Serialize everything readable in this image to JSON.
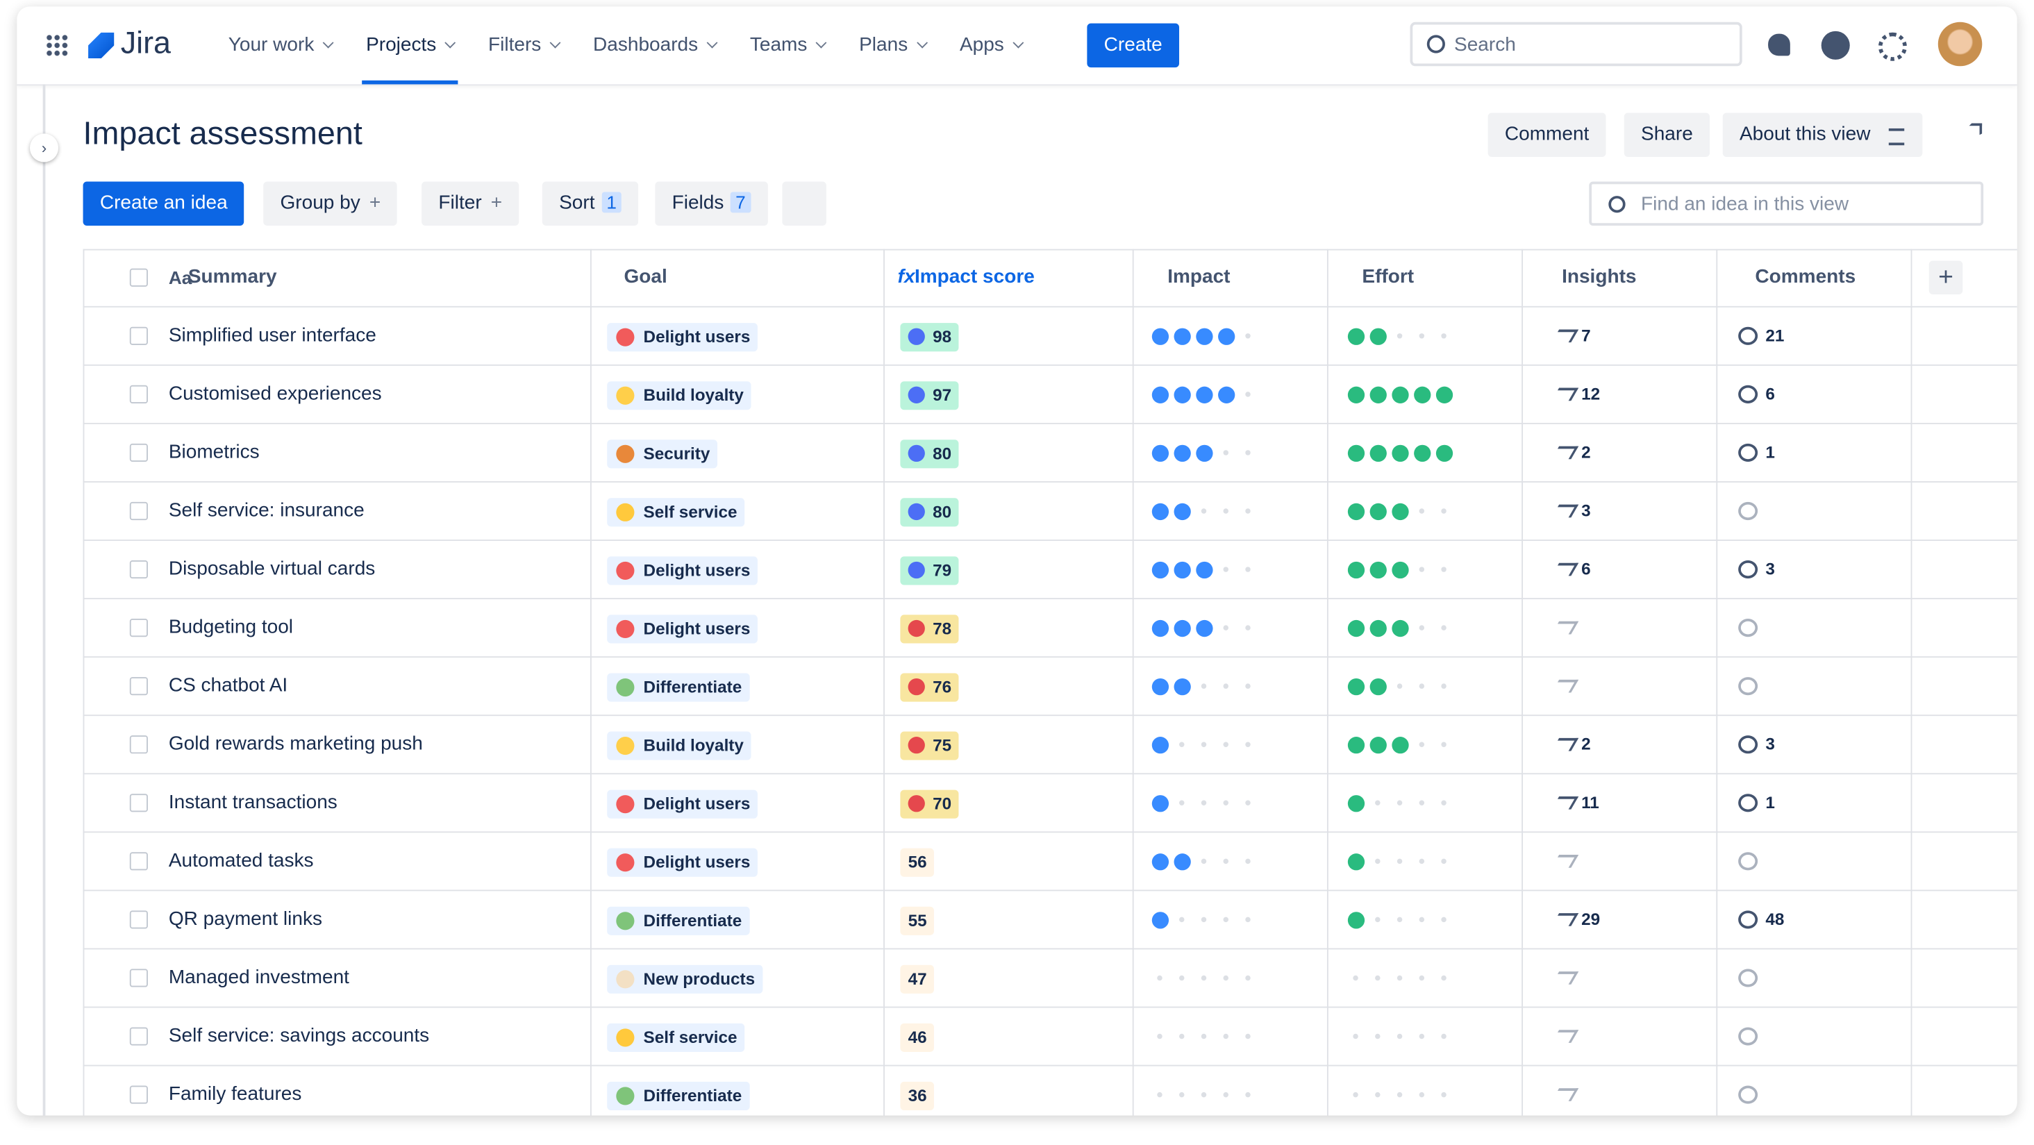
{
  "nav": {
    "logo": "Jira",
    "items": [
      "Your work",
      "Projects",
      "Filters",
      "Dashboards",
      "Teams",
      "Plans",
      "Apps"
    ],
    "create": "Create",
    "search": "Search"
  },
  "header": {
    "title": "Impact assessment",
    "actions": [
      "Comment",
      "Share",
      "About this view"
    ]
  },
  "toolbar": {
    "create_idea": "Create an idea",
    "group_by": "Group by",
    "filter": "Filter",
    "sort": "Sort",
    "sort_count": 1,
    "fields": "Fields",
    "fields_count": 7,
    "search_placeholder": "Find an idea in this view"
  },
  "table": {
    "summary_icon": "Aa",
    "score_icon": "fx",
    "columns": [
      "Summary",
      "Goal",
      "Impact score",
      "Impact",
      "Effort",
      "Insights",
      "Comments"
    ],
    "rows": [
      {
        "summary": "Simplified user interface",
        "goal": "Delight users",
        "score": 98,
        "impact": 4,
        "effort": 2,
        "insights": 7,
        "comments": 21
      },
      {
        "summary": "Customised experiences",
        "goal": "Build loyalty",
        "score": 97,
        "impact": 4,
        "effort": 5,
        "insights": 12,
        "comments": 6
      },
      {
        "summary": "Biometrics",
        "goal": "Security",
        "score": 80,
        "impact": 3,
        "effort": 5,
        "insights": 2,
        "comments": 1
      },
      {
        "summary": "Self service: insurance",
        "goal": "Self service",
        "score": 80,
        "impact": 2,
        "effort": 3,
        "insights": 3,
        "comments": null
      },
      {
        "summary": "Disposable virtual cards",
        "goal": "Delight users",
        "score": 79,
        "impact": 3,
        "effort": 3,
        "insights": 6,
        "comments": 3
      },
      {
        "summary": "Budgeting tool",
        "goal": "Delight users",
        "score": 78,
        "impact": 3,
        "effort": 3,
        "insights": null,
        "comments": null
      },
      {
        "summary": "CS chatbot AI",
        "goal": "Differentiate",
        "score": 76,
        "impact": 2,
        "effort": 2,
        "insights": null,
        "comments": null
      },
      {
        "summary": "Gold rewards marketing push",
        "goal": "Build loyalty",
        "score": 75,
        "impact": 1,
        "effort": 3,
        "insights": 2,
        "comments": 3
      },
      {
        "summary": "Instant transactions",
        "goal": "Delight users",
        "score": 70,
        "impact": 1,
        "effort": 1,
        "insights": 11,
        "comments": 1
      },
      {
        "summary": "Automated tasks",
        "goal": "Delight users",
        "score": 56,
        "impact": 2,
        "effort": 1,
        "insights": null,
        "comments": null
      },
      {
        "summary": "QR payment links",
        "goal": "Differentiate",
        "score": 55,
        "impact": 1,
        "effort": 1,
        "insights": 29,
        "comments": 48
      },
      {
        "summary": "Managed investment",
        "goal": "New products",
        "score": 47,
        "impact": 0,
        "effort": 0,
        "insights": null,
        "comments": null
      },
      {
        "summary": "Self service: savings accounts",
        "goal": "Self service",
        "score": 46,
        "impact": 0,
        "effort": 0,
        "insights": null,
        "comments": null
      },
      {
        "summary": "Family features",
        "goal": "Differentiate",
        "score": 36,
        "impact": 0,
        "effort": 0,
        "insights": null,
        "comments": null
      }
    ]
  }
}
